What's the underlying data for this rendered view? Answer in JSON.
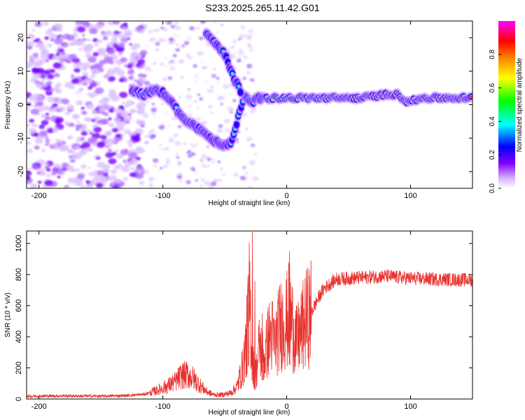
{
  "title": "S233.2025.265.11.42.G01",
  "chart_data": [
    {
      "type": "heatmap",
      "xlabel": "Height of straight line (km)",
      "ylabel": "Frequency (Hz)",
      "xlim": [
        -210,
        150
      ],
      "ylim": [
        -25,
        25
      ],
      "xticks": [
        -200,
        -100,
        0,
        100
      ],
      "yticks": [
        -20,
        -10,
        0,
        10,
        20
      ],
      "colorbar": {
        "label": "Normalized spectral amplitude",
        "range": [
          0,
          1
        ],
        "ticks": [
          0.0,
          0.2,
          0.4,
          0.6,
          0.8
        ],
        "tick_labels": [
          "0.0",
          "0.2",
          "0.4",
          "0.6",
          "0.8"
        ],
        "colors": [
          "#ffffff",
          "#d9b3ff",
          "#8000ff",
          "#0000ff",
          "#00ffff",
          "#00ff00",
          "#ffff00",
          "#ff8000",
          "#ff0000",
          "#ff00ff"
        ]
      },
      "ridge_main": [
        [
          -125,
          4
        ],
        [
          -115,
          3
        ],
        [
          -105,
          5
        ],
        [
          -95,
          2
        ],
        [
          -88,
          -2
        ],
        [
          -80,
          -5
        ],
        [
          -72,
          -7
        ],
        [
          -65,
          -9
        ],
        [
          -58,
          -11
        ],
        [
          -50,
          -12
        ],
        [
          -44,
          -11
        ],
        [
          -38,
          -2
        ],
        [
          -34,
          3
        ],
        [
          -28,
          1
        ],
        [
          -20,
          2
        ],
        [
          -10,
          2
        ],
        [
          0,
          2
        ],
        [
          10,
          2
        ],
        [
          20,
          2
        ],
        [
          40,
          2
        ],
        [
          60,
          2
        ],
        [
          80,
          3
        ],
        [
          90,
          3
        ],
        [
          97,
          1
        ],
        [
          100,
          1
        ],
        [
          110,
          2
        ],
        [
          130,
          2
        ],
        [
          150,
          2
        ]
      ],
      "ridge_upper": [
        [
          -65,
          21
        ],
        [
          -55,
          17
        ],
        [
          -50,
          15
        ],
        [
          -45,
          10
        ],
        [
          -40,
          6
        ],
        [
          -36,
          3
        ]
      ]
    },
    {
      "type": "line",
      "xlabel": "Height of straight line (km)",
      "ylabel": "SNR (10 * v/v)",
      "xlim": [
        -210,
        150
      ],
      "ylim": [
        0,
        1080
      ],
      "xticks": [
        -200,
        -100,
        0,
        100
      ],
      "yticks": [
        0,
        200,
        400,
        600,
        800,
        1000
      ],
      "color": "#e8312c",
      "series": [
        {
          "name": "SNR",
          "x": [
            -210,
            -180,
            -150,
            -130,
            -115,
            -105,
            -100,
            -95,
            -90,
            -85,
            -80,
            -75,
            -70,
            -65,
            -60,
            -55,
            -50,
            -45,
            -40,
            -35,
            -32,
            -30,
            -28,
            -26,
            -24,
            -22,
            -20,
            -18,
            -15,
            -12,
            -10,
            -5,
            0,
            2,
            5,
            8,
            10,
            15,
            20,
            25,
            30,
            40,
            60,
            80,
            100,
            120,
            150
          ],
          "values": [
            18,
            20,
            18,
            22,
            30,
            55,
            70,
            90,
            110,
            150,
            155,
            130,
            90,
            50,
            30,
            25,
            30,
            40,
            80,
            220,
            420,
            650,
            300,
            150,
            200,
            350,
            300,
            250,
            380,
            420,
            350,
            480,
            500,
            550,
            470,
            360,
            400,
            500,
            560,
            640,
            710,
            770,
            780,
            790,
            775,
            770,
            765
          ]
        }
      ],
      "spikes": [
        [
          -28,
          1075
        ],
        [
          -31,
          620
        ],
        [
          -26,
          760
        ],
        [
          2,
          950
        ],
        [
          -33,
          450
        ],
        [
          -20,
          550
        ]
      ]
    }
  ]
}
